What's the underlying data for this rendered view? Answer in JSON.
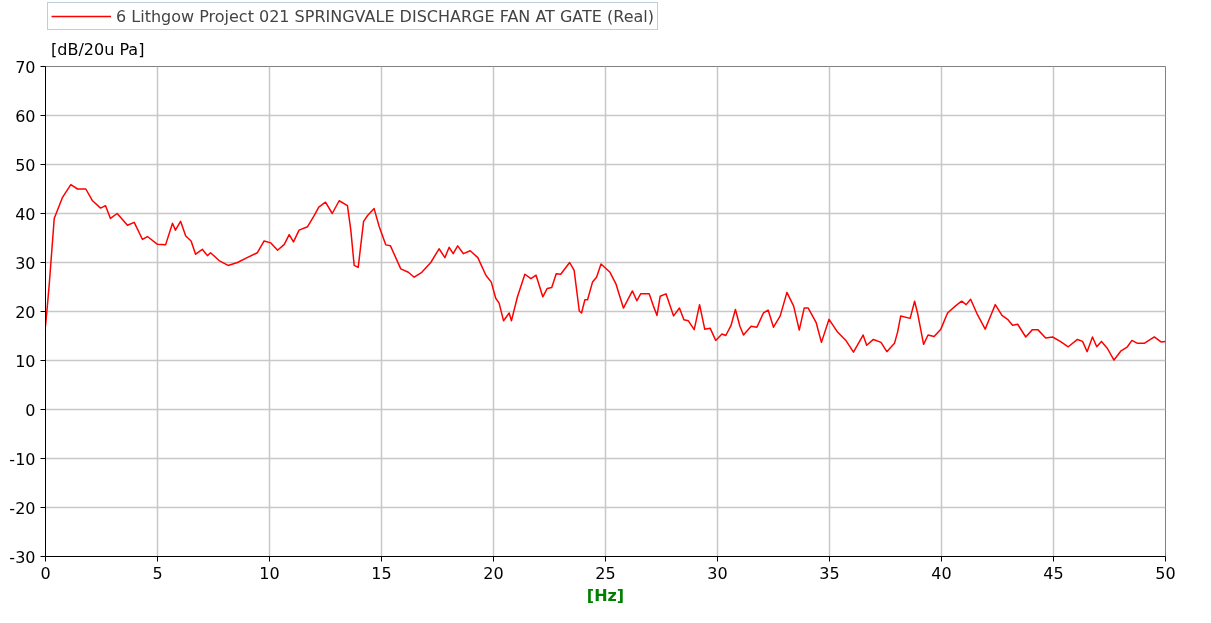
{
  "chart_data": {
    "type": "line",
    "xlabel": "[Hz]",
    "ylabel": "[dB/20u Pa]",
    "xlim": [
      0,
      50
    ],
    "ylim": [
      -30,
      70
    ],
    "xticks": [
      0,
      5,
      10,
      15,
      20,
      25,
      30,
      35,
      40,
      45,
      50
    ],
    "yticks": [
      -30,
      -20,
      -10,
      0,
      10,
      20,
      30,
      40,
      50,
      60,
      70
    ],
    "grid": true,
    "legend": "top",
    "line_style": "solid",
    "series": [
      {
        "name": "6 Lithgow Project 021 SPRINGVALE DISCHARGE FAN AT GATE (Real)",
        "color": "#ff0000",
        "x": [
          0,
          0.08,
          0.17,
          0.39,
          0.76,
          1.13,
          1.43,
          1.8,
          2.1,
          2.46,
          2.68,
          2.9,
          3.2,
          3.66,
          3.96,
          4.33,
          4.55,
          5.0,
          5.36,
          5.67,
          5.8,
          6.03,
          6.26,
          6.5,
          6.7,
          7.0,
          7.23,
          7.37,
          7.75,
          8.15,
          8.57,
          9.0,
          9.46,
          9.76,
          10.06,
          10.36,
          10.66,
          10.88,
          11.07,
          11.32,
          11.7,
          12.0,
          12.2,
          12.5,
          12.8,
          13.11,
          13.48,
          13.63,
          13.78,
          13.96,
          14.2,
          14.38,
          14.67,
          14.9,
          15.19,
          15.4,
          15.86,
          16.2,
          16.46,
          16.8,
          17.2,
          17.57,
          17.83,
          18.02,
          18.2,
          18.4,
          18.66,
          18.96,
          19.3,
          19.66,
          19.9,
          20.1,
          20.25,
          20.45,
          20.7,
          20.8,
          21.07,
          21.4,
          21.67,
          21.9,
          22.2,
          22.4,
          22.6,
          22.8,
          23.0,
          23.4,
          23.6,
          23.83,
          23.93,
          24.08,
          24.2,
          24.42,
          24.6,
          24.8,
          25.2,
          25.46,
          25.8,
          26.2,
          26.4,
          26.57,
          26.95,
          27.14,
          27.3,
          27.44,
          27.7,
          28.04,
          28.3,
          28.5,
          28.7,
          28.96,
          29.2,
          29.43,
          29.67,
          29.92,
          30.2,
          30.37,
          30.6,
          30.8,
          31.0,
          31.16,
          31.5,
          31.76,
          32.05,
          32.26,
          32.5,
          32.8,
          33.1,
          33.4,
          33.65,
          33.87,
          34.05,
          34.4,
          34.64,
          34.98,
          35.36,
          35.73,
          36.07,
          36.5,
          36.66,
          36.96,
          37.3,
          37.56,
          37.9,
          38.04,
          38.18,
          38.6,
          38.8,
          38.93,
          39.2,
          39.4,
          39.67,
          39.97,
          40.27,
          40.64,
          40.9,
          41.1,
          41.3,
          41.6,
          41.95,
          42.2,
          42.4,
          42.7,
          42.95,
          43.17,
          43.4,
          43.76,
          44.06,
          44.3,
          44.65,
          44.96,
          45.3,
          45.66,
          46.07,
          46.3,
          46.5,
          46.74,
          46.93,
          47.14,
          47.4,
          47.7,
          48.0,
          48.3,
          48.5,
          48.75,
          49.05,
          49.5,
          49.8,
          50
        ],
        "values": [
          17,
          21,
          25.7,
          39,
          43.3,
          45.9,
          45,
          45,
          42.6,
          41.1,
          41.6,
          39,
          40,
          37.6,
          38.2,
          34.7,
          35.3,
          33.7,
          33.6,
          38,
          36.6,
          38.4,
          35.4,
          34.4,
          31.7,
          32.7,
          31.4,
          32,
          30.4,
          29.4,
          30,
          31,
          32,
          34.4,
          34,
          32.5,
          33.7,
          35.7,
          34.2,
          36.6,
          37.3,
          39.6,
          41.3,
          42.3,
          40,
          42.6,
          41.6,
          36.6,
          29.4,
          29,
          38.4,
          39.6,
          41,
          37.3,
          33.6,
          33.4,
          28.7,
          28,
          27,
          28,
          30,
          32.8,
          31,
          33.1,
          31.8,
          33.4,
          31.8,
          32.4,
          31,
          27.4,
          26,
          22.7,
          21.7,
          18.1,
          19.7,
          18.1,
          23,
          27.6,
          26.7,
          27.4,
          23,
          24.7,
          24.9,
          27.7,
          27.6,
          30,
          28.4,
          20.1,
          19.7,
          22.4,
          22.4,
          26,
          27,
          29.7,
          28,
          25.7,
          20.7,
          24.2,
          22.2,
          23.6,
          23.6,
          21.1,
          19.2,
          23.1,
          23.6,
          19.1,
          20.7,
          18.3,
          18.1,
          16.3,
          21.4,
          16.4,
          16.6,
          14.1,
          15.4,
          15.1,
          17.1,
          20.4,
          17,
          15.2,
          17,
          16.8,
          19.7,
          20.3,
          16.8,
          19.1,
          23.9,
          21.1,
          16.2,
          20.7,
          20.7,
          17.8,
          13.7,
          18.4,
          15.8,
          14.1,
          11.7,
          15.2,
          13.1,
          14.3,
          13.7,
          11.8,
          13.5,
          15.8,
          19.1,
          18.6,
          22.1,
          19.7,
          13.3,
          15.2,
          14.9,
          16.4,
          19.7,
          21.2,
          22.1,
          21.4,
          22.5,
          19.4,
          16.4,
          19.2,
          21.4,
          19.2,
          18.4,
          17.2,
          17.4,
          14.8,
          16.3,
          16.3,
          14.6,
          14.8,
          13.9,
          12.8,
          14.3,
          13.9,
          11.8,
          14.8,
          12.8,
          13.9,
          12.5,
          10.1,
          11.9,
          12.8,
          14.1,
          13.5,
          13.5,
          14.8,
          13.8,
          13.9
        ]
      }
    ]
  }
}
